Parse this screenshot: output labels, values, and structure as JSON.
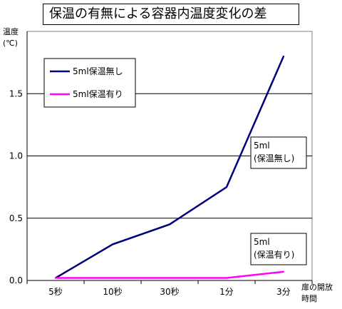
{
  "chart_data": {
    "type": "line",
    "title": "保温の有無による容器内温度変化の差",
    "ylabel": [
      "温度",
      "(℃)"
    ],
    "xlabel": [
      "扉の開放",
      "時間"
    ],
    "categories": [
      "5秒",
      "10秒",
      "30秒",
      "1分",
      "3分"
    ],
    "ylim": [
      0,
      2.0
    ],
    "yticks": [
      "0.0",
      "0.5",
      "1.0",
      "1.5"
    ],
    "grid": true,
    "legend_position": "top-left",
    "series": [
      {
        "name": "5ml保温無し",
        "color": "#00007f",
        "values": [
          0.02,
          0.29,
          0.45,
          0.75,
          1.8
        ]
      },
      {
        "name": "5ml保温有り",
        "color": "#ff00ff",
        "values": [
          0.02,
          0.02,
          0.02,
          0.02,
          0.07
        ]
      }
    ],
    "annotations": [
      {
        "lines": [
          "5ml",
          "(保温無し)"
        ],
        "series": 0
      },
      {
        "lines": [
          "5ml",
          "(保温有り)"
        ],
        "series": 1
      }
    ]
  }
}
